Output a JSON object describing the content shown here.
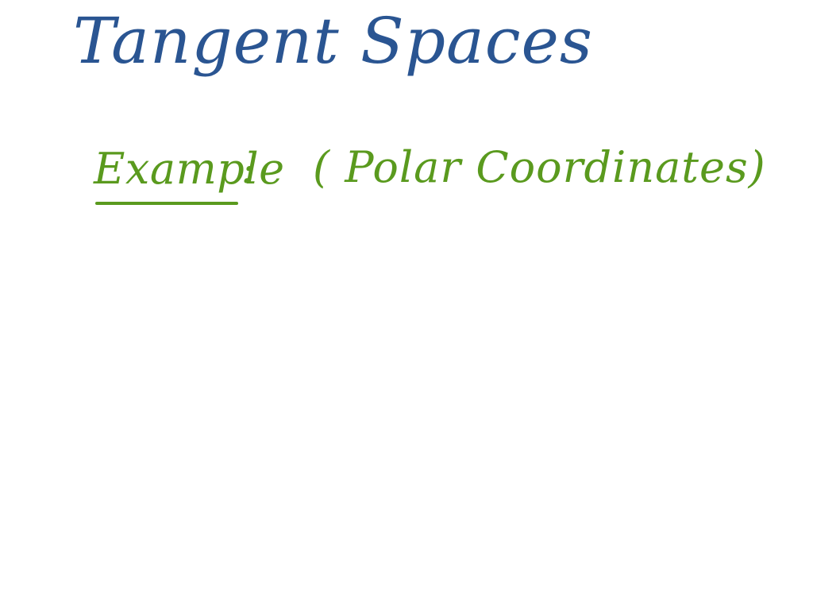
{
  "title": "Tangent Spaces",
  "example": {
    "label": "Example",
    "colon": ":",
    "note": "( Polar Coordinates)"
  },
  "colors": {
    "title": "#2a5592",
    "example": "#5a9a1e",
    "background": "#ffffff"
  }
}
